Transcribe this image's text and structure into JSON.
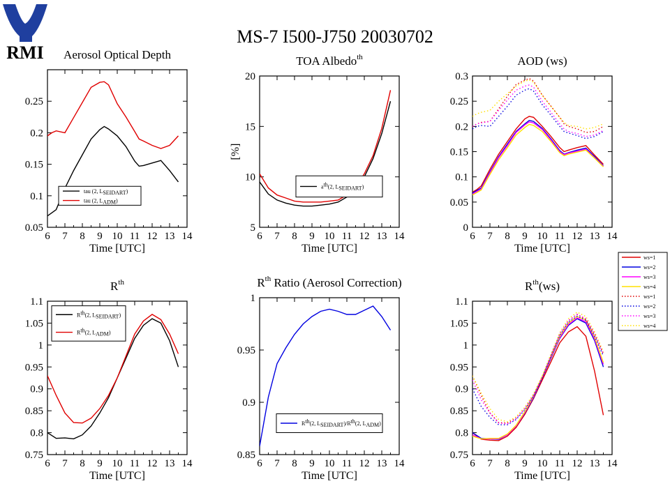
{
  "title": "MS-7 I500-J750 20030702",
  "logo": {
    "text": "RMI",
    "color": "#1f3f9f"
  },
  "chart_data": [
    {
      "type": "line",
      "id": "aod",
      "title": "Aerosol Optical Depth",
      "xlabel": "Time [UTC]",
      "ylabel": "",
      "xlim": [
        6,
        14
      ],
      "ylim": [
        0.05,
        0.3
      ],
      "xticks": [
        6,
        7,
        8,
        9,
        10,
        11,
        12,
        13,
        14
      ],
      "yticks": [
        0.05,
        0.1,
        0.15,
        0.2,
        0.25
      ],
      "ytick_labels": [
        "0.05",
        "0.1",
        "0.15",
        "0.2",
        "0.25"
      ],
      "legend_box": [
        0.08,
        0.14,
        0.67,
        0.26
      ],
      "series": [
        {
          "label": "tau (2, L",
          "sub": "SEIDART",
          "label_end": ")",
          "color": "#000000",
          "x": [
            6,
            6.25,
            6.5,
            7,
            7.5,
            8,
            8.5,
            9,
            9.25,
            9.5,
            10,
            10.5,
            11,
            11.25,
            11.5,
            12,
            12.5,
            13,
            13.5
          ],
          "y": [
            0.068,
            0.073,
            0.078,
            0.112,
            0.14,
            0.165,
            0.19,
            0.205,
            0.21,
            0.206,
            0.195,
            0.178,
            0.155,
            0.147,
            0.148,
            0.152,
            0.156,
            0.14,
            0.122
          ]
        },
        {
          "label": "tau (2, L",
          "sub": "ADM",
          "label_end": ")",
          "color": "#e00000",
          "x": [
            6,
            6.25,
            6.5,
            7,
            7.5,
            8,
            8.5,
            9,
            9.25,
            9.5,
            10,
            10.5,
            11,
            11.25,
            11.5,
            12,
            12.5,
            13,
            13.5
          ],
          "y": [
            0.195,
            0.2,
            0.203,
            0.2,
            0.224,
            0.248,
            0.272,
            0.28,
            0.281,
            0.276,
            0.246,
            0.225,
            0.202,
            0.19,
            0.187,
            0.18,
            0.175,
            0.18,
            0.195
          ]
        }
      ]
    },
    {
      "type": "line",
      "id": "albedo",
      "title": "TOA Albedo",
      "title_sup": "th",
      "xlabel": "Time [UTC]",
      "ylabel": "[%]",
      "xlim": [
        6,
        14
      ],
      "ylim": [
        5,
        20
      ],
      "xticks": [
        6,
        7,
        8,
        9,
        10,
        11,
        12,
        13,
        14
      ],
      "yticks": [
        5,
        10,
        15,
        20
      ],
      "ytick_labels": [
        "5",
        "10",
        "15",
        "20"
      ],
      "legend_box": [
        0.26,
        0.2,
        0.88,
        0.34
      ],
      "series": [
        {
          "label": "a",
          "sup": "th",
          "label_mid": "(2, L",
          "sub": "SEIDART",
          "label_end": ")",
          "color": "#000000",
          "x": [
            6,
            6.5,
            7,
            7.5,
            8,
            8.5,
            9,
            9.5,
            10,
            10.5,
            11,
            11.5,
            12,
            12.5,
            13,
            13.5
          ],
          "y": [
            9.5,
            8.3,
            7.7,
            7.4,
            7.2,
            7.1,
            7.1,
            7.2,
            7.3,
            7.5,
            8.0,
            8.8,
            10.0,
            11.8,
            14.3,
            17.5
          ]
        },
        {
          "label": "",
          "color": "#e00000",
          "x": [
            6,
            6.5,
            7,
            7.5,
            8,
            8.5,
            9,
            9.5,
            10,
            10.5,
            11,
            11.5,
            12,
            12.5,
            13,
            13.5
          ],
          "y": [
            10.3,
            8.9,
            8.2,
            7.9,
            7.6,
            7.5,
            7.5,
            7.5,
            7.6,
            7.7,
            8.2,
            9.0,
            10.3,
            12.1,
            14.8,
            18.6
          ]
        }
      ]
    },
    {
      "type": "line",
      "id": "aodws",
      "title": "AOD (ws)",
      "xlabel": "Time [UTC]",
      "ylabel": "",
      "xlim": [
        6,
        14
      ],
      "ylim": [
        0,
        0.3
      ],
      "xticks": [
        6,
        7,
        8,
        9,
        10,
        11,
        12,
        13,
        14
      ],
      "yticks": [
        0,
        0.05,
        0.1,
        0.15,
        0.2,
        0.25,
        0.3
      ],
      "ytick_labels": [
        "0",
        "0.05",
        "0.1",
        "0.15",
        "0.2",
        "0.25",
        "0.3"
      ],
      "x": [
        6,
        6.25,
        6.5,
        7,
        7.5,
        8,
        8.5,
        9,
        9.25,
        9.5,
        10,
        10.5,
        11,
        11.25,
        11.5,
        12,
        12.5,
        13,
        13.5
      ],
      "series": [
        {
          "label": "ws=1",
          "color": "#e00000",
          "dash": false,
          "y": [
            0.07,
            0.075,
            0.082,
            0.115,
            0.145,
            0.17,
            0.195,
            0.215,
            0.22,
            0.218,
            0.2,
            0.18,
            0.158,
            0.15,
            0.153,
            0.158,
            0.162,
            0.143,
            0.125
          ]
        },
        {
          "label": "ws=2",
          "color": "#0000e0",
          "dash": false,
          "y": [
            0.068,
            0.073,
            0.078,
            0.11,
            0.14,
            0.165,
            0.19,
            0.205,
            0.212,
            0.21,
            0.196,
            0.175,
            0.152,
            0.145,
            0.148,
            0.153,
            0.157,
            0.14,
            0.122
          ]
        },
        {
          "label": "ws=3",
          "color": "#ff00ff",
          "dash": false,
          "y": [
            0.066,
            0.071,
            0.076,
            0.108,
            0.138,
            0.162,
            0.188,
            0.203,
            0.209,
            0.207,
            0.194,
            0.173,
            0.15,
            0.144,
            0.147,
            0.151,
            0.155,
            0.138,
            0.121
          ]
        },
        {
          "label": "ws=4",
          "color": "#ffe000",
          "dash": false,
          "y": [
            0.064,
            0.069,
            0.074,
            0.105,
            0.134,
            0.158,
            0.183,
            0.198,
            0.204,
            0.202,
            0.19,
            0.17,
            0.148,
            0.142,
            0.145,
            0.149,
            0.153,
            0.137,
            0.12
          ]
        },
        {
          "label": "ws=1",
          "color": "#e00000",
          "dash": true,
          "y": [
            0.2,
            0.205,
            0.208,
            0.21,
            0.235,
            0.26,
            0.283,
            0.292,
            0.295,
            0.29,
            0.262,
            0.24,
            0.218,
            0.205,
            0.2,
            0.195,
            0.188,
            0.19,
            0.2
          ]
        },
        {
          "label": "ws=2",
          "color": "#0000e0",
          "dash": true,
          "y": [
            0.195,
            0.2,
            0.202,
            0.2,
            0.22,
            0.24,
            0.262,
            0.272,
            0.275,
            0.27,
            0.243,
            0.222,
            0.2,
            0.19,
            0.187,
            0.182,
            0.176,
            0.18,
            0.19
          ]
        },
        {
          "label": "ws=3",
          "color": "#ff00ff",
          "dash": true,
          "y": [
            0.2,
            0.205,
            0.207,
            0.21,
            0.232,
            0.252,
            0.272,
            0.28,
            0.282,
            0.278,
            0.25,
            0.228,
            0.205,
            0.195,
            0.19,
            0.186,
            0.18,
            0.183,
            0.192
          ]
        },
        {
          "label": "ws=4",
          "color": "#ffe000",
          "dash": true,
          "y": [
            0.22,
            0.225,
            0.228,
            0.232,
            0.25,
            0.265,
            0.28,
            0.29,
            0.292,
            0.288,
            0.262,
            0.24,
            0.218,
            0.208,
            0.202,
            0.2,
            0.195,
            0.198,
            0.205
          ]
        }
      ]
    },
    {
      "type": "line",
      "id": "rth",
      "title": "R",
      "title_sup": "th",
      "xlabel": "Time [UTC]",
      "ylabel": "",
      "xlim": [
        6,
        14
      ],
      "ylim": [
        0.75,
        1.1
      ],
      "xticks": [
        6,
        7,
        8,
        9,
        10,
        11,
        12,
        13,
        14
      ],
      "yticks": [
        0.75,
        0.8,
        0.85,
        0.9,
        0.95,
        1,
        1.05,
        1.1
      ],
      "ytick_labels": [
        "0.75",
        "0.8",
        "0.85",
        "0.9",
        "0.95",
        "1",
        "1.05",
        "1.1"
      ],
      "legend_box": [
        0.03,
        0.74,
        0.56,
        0.97
      ],
      "series": [
        {
          "label": "R",
          "sup": "th",
          "label_mid": "(2, L",
          "sub": "SEIDART",
          "label_end": ")",
          "color": "#000000",
          "x": [
            6,
            6.5,
            7,
            7.5,
            8,
            8.5,
            9,
            9.5,
            10,
            10.5,
            11,
            11.5,
            12,
            12.5,
            13,
            13.5
          ],
          "y": [
            0.8,
            0.787,
            0.788,
            0.786,
            0.795,
            0.815,
            0.845,
            0.88,
            0.925,
            0.97,
            1.015,
            1.045,
            1.06,
            1.05,
            1.01,
            0.95
          ]
        },
        {
          "label": "R",
          "sup": "th",
          "label_mid": "(2, L",
          "sub": "ADM",
          "label_end": ")",
          "color": "#e00000",
          "x": [
            6,
            6.5,
            7,
            7.5,
            8,
            8.5,
            9,
            9.5,
            10,
            10.5,
            11,
            11.5,
            12,
            12.5,
            13,
            13.5
          ],
          "y": [
            0.93,
            0.885,
            0.845,
            0.823,
            0.822,
            0.833,
            0.855,
            0.885,
            0.925,
            0.975,
            1.025,
            1.055,
            1.07,
            1.058,
            1.025,
            0.98
          ]
        }
      ]
    },
    {
      "type": "line",
      "id": "ratio",
      "title": "R",
      "title_sup": "th",
      "title_end": " Ratio (Aerosol Correction)",
      "xlabel": "Time [UTC]",
      "ylabel": "",
      "xlim": [
        6,
        14
      ],
      "ylim": [
        0.85,
        1
      ],
      "xticks": [
        6,
        7,
        8,
        9,
        10,
        11,
        12,
        13,
        14
      ],
      "yticks": [
        0.85,
        0.9,
        0.95,
        1
      ],
      "ytick_labels": [
        "0.85",
        "0.9",
        "0.95",
        "1"
      ],
      "legend_box": [
        0.12,
        0.14,
        0.88,
        0.26
      ],
      "series": [
        {
          "label": "R",
          "sup": "th",
          "label_mid": "(2, L",
          "sub": "SEIDART",
          "label_end": ")/R",
          "sup2": "th",
          "label_mid2": "(2, L",
          "sub2": "ADM",
          "label_end2": ")",
          "color": "#0000e0",
          "x": [
            6,
            6.5,
            7,
            7.5,
            8,
            8.5,
            9,
            9.5,
            10,
            10.5,
            11,
            11.5,
            12,
            12.5,
            13,
            13.5
          ],
          "y": [
            0.858,
            0.905,
            0.937,
            0.952,
            0.965,
            0.975,
            0.982,
            0.987,
            0.989,
            0.987,
            0.984,
            0.984,
            0.988,
            0.992,
            0.982,
            0.969
          ]
        }
      ]
    },
    {
      "type": "line",
      "id": "rthws",
      "title": "R",
      "title_sup": "th",
      "title_end": "(ws)",
      "xlabel": "Time [UTC]",
      "ylabel": "",
      "xlim": [
        6,
        14
      ],
      "ylim": [
        0.75,
        1.1
      ],
      "xticks": [
        6,
        7,
        8,
        9,
        10,
        11,
        12,
        13,
        14
      ],
      "yticks": [
        0.75,
        0.8,
        0.85,
        0.9,
        0.95,
        1,
        1.05,
        1.1
      ],
      "ytick_labels": [
        "0.75",
        "0.8",
        "0.85",
        "0.9",
        "0.95",
        "1",
        "1.05",
        "1.1"
      ],
      "x": [
        6,
        6.5,
        7,
        7.5,
        8,
        8.5,
        9,
        9.5,
        10,
        10.5,
        11,
        11.5,
        12,
        12.5,
        13,
        13.5
      ],
      "series": [
        {
          "label": "ws=1",
          "color": "#e00000",
          "dash": false,
          "y": [
            0.8,
            0.785,
            0.783,
            0.782,
            0.792,
            0.812,
            0.842,
            0.878,
            0.92,
            0.962,
            1.005,
            1.03,
            1.042,
            1.02,
            0.94,
            0.84
          ]
        },
        {
          "label": "ws=2",
          "color": "#0000e0",
          "dash": false,
          "y": [
            0.8,
            0.787,
            0.786,
            0.785,
            0.795,
            0.815,
            0.845,
            0.88,
            0.925,
            0.97,
            1.015,
            1.045,
            1.06,
            1.05,
            1.01,
            0.95
          ]
        },
        {
          "label": "ws=3",
          "color": "#ff00ff",
          "dash": false,
          "y": [
            0.795,
            0.786,
            0.786,
            0.786,
            0.795,
            0.815,
            0.846,
            0.882,
            0.926,
            0.972,
            1.017,
            1.047,
            1.062,
            1.053,
            1.014,
            0.956
          ]
        },
        {
          "label": "ws=4",
          "color": "#ffe000",
          "dash": false,
          "y": [
            0.792,
            0.786,
            0.787,
            0.787,
            0.797,
            0.817,
            0.848,
            0.884,
            0.928,
            0.974,
            1.02,
            1.05,
            1.065,
            1.057,
            1.018,
            0.96
          ]
        },
        {
          "label": "ws=1",
          "color": "#e00000",
          "dash": true,
          "y": [
            0.93,
            0.885,
            0.845,
            0.823,
            0.822,
            0.833,
            0.855,
            0.885,
            0.925,
            0.975,
            1.025,
            1.055,
            1.07,
            1.058,
            1.025,
            0.98
          ]
        },
        {
          "label": "ws=2",
          "color": "#0000e0",
          "dash": true,
          "y": [
            0.9,
            0.86,
            0.835,
            0.818,
            0.818,
            0.83,
            0.852,
            0.884,
            0.925,
            0.975,
            1.022,
            1.052,
            1.066,
            1.056,
            1.02,
            0.975
          ]
        },
        {
          "label": "ws=3",
          "color": "#ff00ff",
          "dash": true,
          "y": [
            0.92,
            0.875,
            0.845,
            0.822,
            0.82,
            0.832,
            0.855,
            0.886,
            0.927,
            0.977,
            1.025,
            1.056,
            1.07,
            1.06,
            1.025,
            0.98
          ]
        },
        {
          "label": "ws=4",
          "color": "#ffe000",
          "dash": true,
          "y": [
            0.93,
            0.89,
            0.855,
            0.83,
            0.825,
            0.836,
            0.858,
            0.889,
            0.93,
            0.98,
            1.028,
            1.06,
            1.075,
            1.065,
            1.03,
            0.985
          ]
        }
      ]
    }
  ]
}
